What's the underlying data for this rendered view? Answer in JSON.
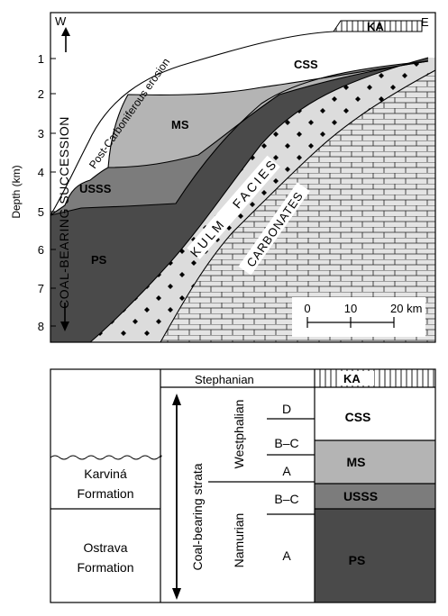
{
  "section": {
    "west": "W",
    "east": "E",
    "depth_label": "Depth (km)",
    "depth_ticks": [
      "1",
      "2",
      "3",
      "4",
      "5",
      "6",
      "7",
      "8"
    ],
    "units": {
      "ka": "KA",
      "css": "CSS",
      "ms": "MS",
      "usss": "USSS",
      "ps": "PS"
    },
    "erosion_label": "Post-Carboniferous erosion",
    "succession_label": "COAL-BEARING SUCCESSION",
    "kulm_label": "KULM   FACIES",
    "carbonates_label": "CARBONATES",
    "scale": {
      "labels": [
        "0",
        "10",
        "20 km"
      ]
    },
    "colors": {
      "ps": "#4a4a4a",
      "usss": "#7c7c7c",
      "ms": "#b4b4b4",
      "kulm": "#dcdcdc",
      "carbonates": "#e4e4e4"
    }
  },
  "strat": {
    "stephanian": "Stephanian",
    "ka": "KA",
    "westphalian": "Westphalian",
    "namurian": "Namurian",
    "coal_strata": "Coal-bearing strata",
    "karvina": [
      "Karviná",
      "Formation"
    ],
    "ostrava": [
      "Ostrava",
      "Formation"
    ],
    "substages": [
      "D",
      "B–C",
      "A",
      "B–C",
      "A"
    ],
    "units": [
      "CSS",
      "MS",
      "USSS",
      "PS"
    ]
  }
}
